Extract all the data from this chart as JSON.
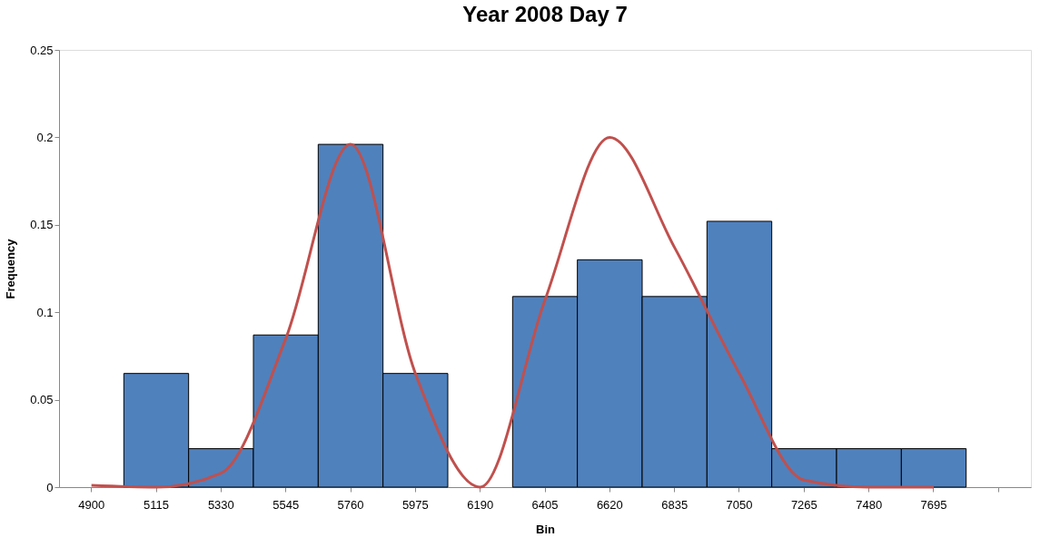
{
  "chart_data": {
    "type": "bar",
    "title": "Year 2008 Day 7",
    "xlabel": "Bin",
    "ylabel": "Frequency",
    "categories": [
      "4900",
      "5115",
      "5330",
      "5545",
      "5760",
      "5975",
      "6190",
      "6405",
      "6620",
      "6835",
      "7050",
      "7265",
      "7480",
      "7695",
      null
    ],
    "series": [
      {
        "color": "#4f81bd",
        "values": [
          0,
          0.065,
          0.022,
          0.087,
          0.196,
          0.065,
          0,
          0.109,
          0.13,
          0.109,
          0.152,
          0.022,
          0.022,
          0.022,
          0
        ]
      },
      {
        "type": "line",
        "color": "#c0504d",
        "values": [
          0.001,
          0,
          0.008,
          0.085,
          0.196,
          0.065,
          0,
          0.107,
          0.2,
          0.137,
          0.065,
          0.004,
          0,
          0,
          null
        ]
      }
    ],
    "ylim": [
      0,
      0.25
    ],
    "yticks": [
      0,
      0.05,
      0.1,
      0.15,
      0.2,
      0.25
    ],
    "grid": false
  }
}
